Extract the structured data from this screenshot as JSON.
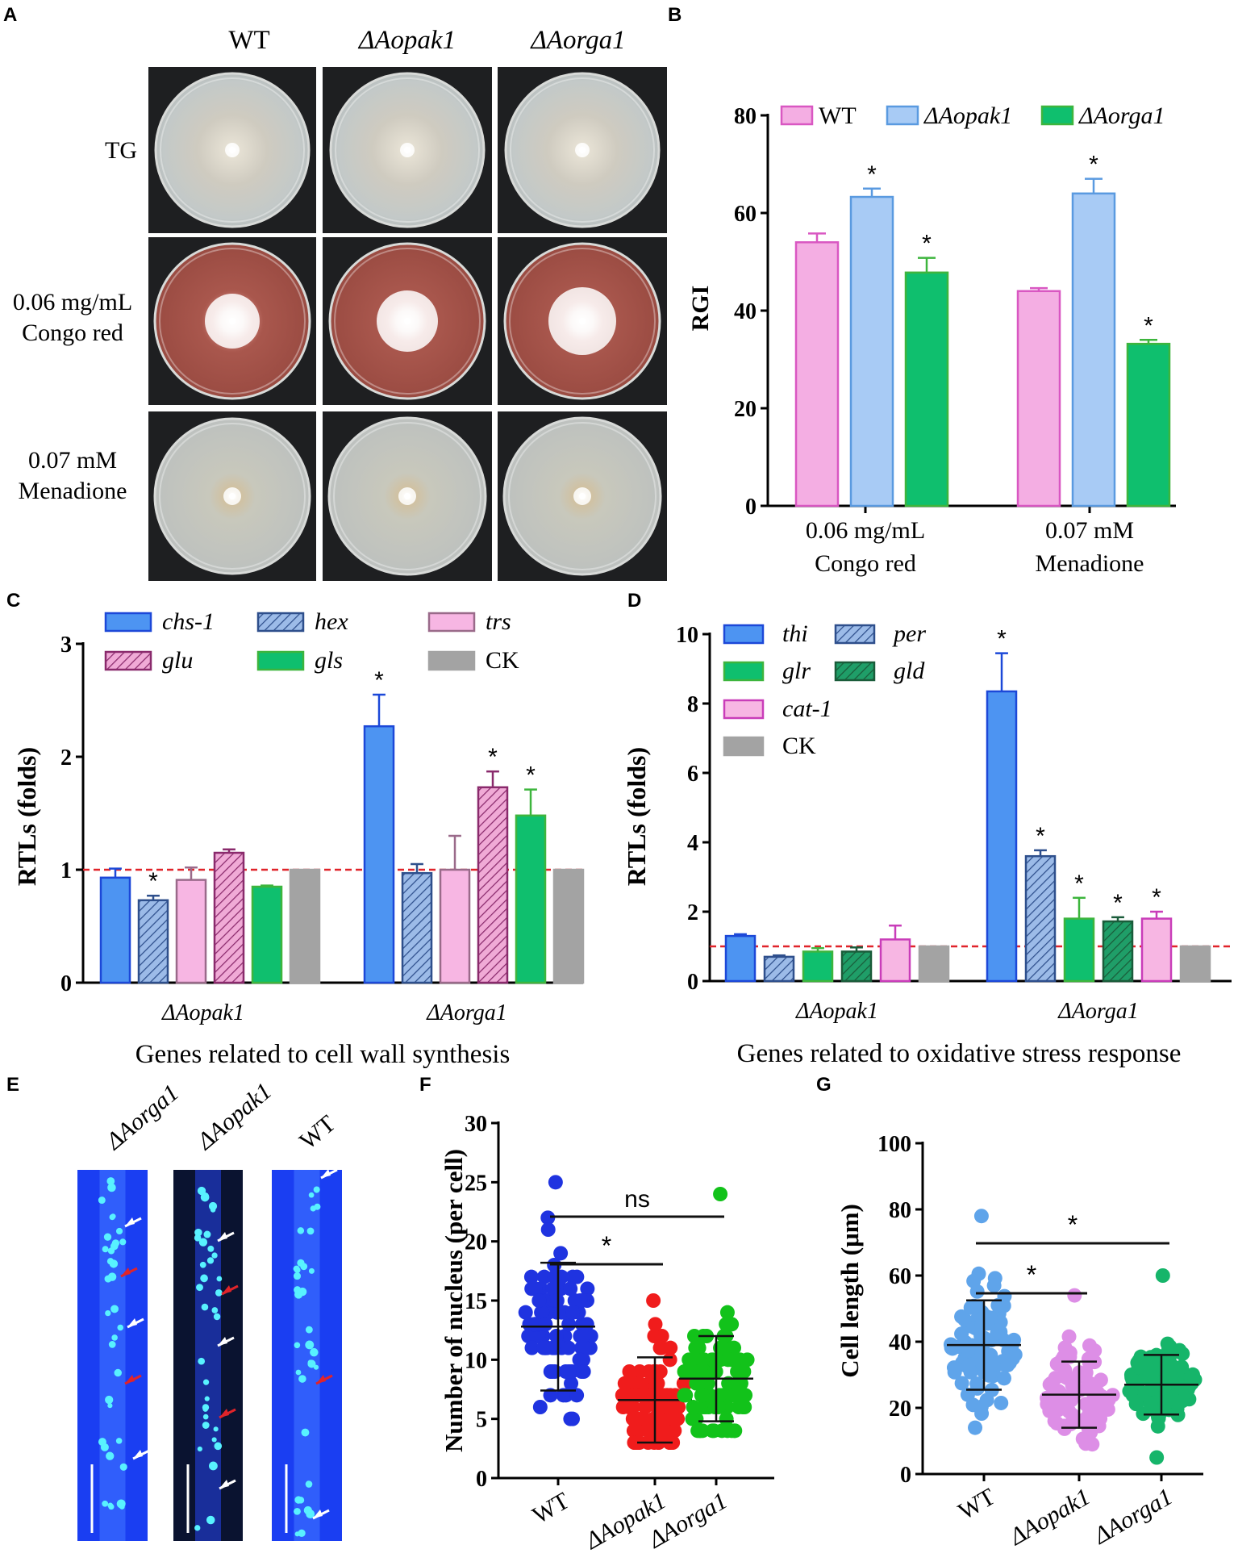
{
  "panel_letters": {
    "A": "A",
    "B": "B",
    "C": "C",
    "D": "D",
    "E": "E",
    "F": "F",
    "G": "G"
  },
  "panelA": {
    "columns": [
      "WT",
      "ΔAopak1",
      "ΔAorga1"
    ],
    "rows": [
      {
        "line1": "TG",
        "line2": ""
      },
      {
        "line1": "0.06 mg/mL",
        "line2": "Congo red"
      },
      {
        "line1": "0.07 mM",
        "line2": "Menadione"
      }
    ],
    "colors": {
      "tg_plate": "#c9ccc8",
      "congo_plate": "#b06256",
      "mena_plate": "#c3c5c1",
      "tg_colony": "#d9d3c4",
      "congo_colony": "#f2e8e4",
      "mena_colony": "#d7c8ab"
    }
  },
  "chart_data": [
    {
      "panel": "B",
      "type": "bar",
      "ylabel": "RGI",
      "ylim": [
        0,
        80
      ],
      "yticks": [
        0,
        20,
        40,
        60,
        80
      ],
      "groups": [
        {
          "line1": "0.06 mg/mL",
          "line2": "Congo red"
        },
        {
          "line1": "0.07 mM",
          "line2": "Menadione"
        }
      ],
      "series": [
        {
          "name": "WT",
          "fill": "#f4aee3",
          "stroke": "#d957c2",
          "values": [
            54,
            44
          ],
          "errors": [
            1.8,
            0.6
          ],
          "sig": [
            "",
            ""
          ]
        },
        {
          "name": "ΔAopak1",
          "fill": "#a8cbf5",
          "stroke": "#5a9ae0",
          "values": [
            63.3,
            64
          ],
          "errors": [
            1.7,
            3
          ],
          "sig": [
            "*",
            "*"
          ]
        },
        {
          "name": "ΔAorga1",
          "fill": "#0fbf6e",
          "stroke": "#3db53d",
          "values": [
            47.8,
            33.2
          ],
          "errors": [
            3,
            0.8
          ],
          "sig": [
            "*",
            "*"
          ]
        }
      ]
    },
    {
      "panel": "C",
      "type": "bar",
      "ylabel": "RTLs (folds)",
      "xlabel": "Genes related to cell wall synthesis",
      "ylim": [
        0,
        3
      ],
      "yticks": [
        0,
        1,
        2,
        3
      ],
      "reference_line": 1,
      "groups": [
        "ΔAopak1",
        "ΔAorga1"
      ],
      "series": [
        {
          "name": "chs-1",
          "italic": true,
          "fill": "#4d94f2",
          "stroke": "#1c48d8",
          "hatch": false,
          "values": [
            0.93,
            2.27
          ],
          "errors": [
            0.08,
            0.28
          ],
          "sig": [
            "",
            "*"
          ]
        },
        {
          "name": "hex",
          "italic": true,
          "fill": "#9cbbe8",
          "stroke": "#2e4f8c",
          "hatch": true,
          "values": [
            0.73,
            0.97
          ],
          "errors": [
            0.04,
            0.08
          ],
          "sig": [
            "*",
            ""
          ]
        },
        {
          "name": "trs",
          "italic": true,
          "fill": "#f7b6e3",
          "stroke": "#9a6a8a",
          "hatch": false,
          "values": [
            0.91,
            1.0
          ],
          "errors": [
            0.11,
            0.3
          ],
          "sig": [
            "",
            ""
          ]
        },
        {
          "name": "glu",
          "italic": true,
          "fill": "#f0aad6",
          "stroke": "#8a2a6c",
          "hatch": true,
          "values": [
            1.15,
            1.73
          ],
          "errors": [
            0.03,
            0.14
          ],
          "sig": [
            "",
            "*"
          ]
        },
        {
          "name": "gls",
          "italic": true,
          "fill": "#0fbf6e",
          "stroke": "#3db53d",
          "hatch": false,
          "values": [
            0.85,
            1.48
          ],
          "errors": [
            0.01,
            0.23
          ],
          "sig": [
            "",
            "*"
          ]
        },
        {
          "name": "CK",
          "italic": false,
          "fill": "#a3a3a3",
          "stroke": "#a3a3a3",
          "hatch": false,
          "values": [
            1.0,
            1.0
          ],
          "errors": [
            0,
            0
          ],
          "sig": [
            "",
            ""
          ]
        }
      ]
    },
    {
      "panel": "D",
      "type": "bar",
      "ylabel": "RTLs (folds)",
      "xlabel": "Genes related to oxidative stress response",
      "ylim": [
        0,
        10
      ],
      "yticks": [
        0,
        2,
        4,
        6,
        8,
        10
      ],
      "reference_line": 1,
      "groups": [
        "ΔAopak1",
        "ΔAorga1"
      ],
      "series": [
        {
          "name": "thi",
          "italic": true,
          "fill": "#4d94f2",
          "stroke": "#1c48d8",
          "hatch": false,
          "values": [
            1.3,
            8.35
          ],
          "errors": [
            0.05,
            1.1
          ],
          "sig": [
            "",
            "*"
          ]
        },
        {
          "name": "per",
          "italic": true,
          "fill": "#9cbbe8",
          "stroke": "#2e4f8c",
          "hatch": true,
          "values": [
            0.7,
            3.6
          ],
          "errors": [
            0.04,
            0.17
          ],
          "sig": [
            "",
            "*"
          ]
        },
        {
          "name": "glr",
          "italic": true,
          "fill": "#0fbf6e",
          "stroke": "#3db53d",
          "hatch": false,
          "values": [
            0.85,
            1.8
          ],
          "errors": [
            0.1,
            0.6
          ],
          "sig": [
            "",
            "*"
          ]
        },
        {
          "name": "gld",
          "italic": true,
          "fill": "#1f9e68",
          "stroke": "#1a5c3a",
          "hatch": true,
          "values": [
            0.85,
            1.72
          ],
          "errors": [
            0.12,
            0.12
          ],
          "sig": [
            "",
            "*"
          ]
        },
        {
          "name": "cat-1",
          "italic": true,
          "fill": "#f7b6e3",
          "stroke": "#c93db9",
          "hatch": false,
          "values": [
            1.2,
            1.8
          ],
          "errors": [
            0.4,
            0.2
          ],
          "sig": [
            "",
            "*"
          ]
        },
        {
          "name": "CK",
          "italic": false,
          "fill": "#a3a3a3",
          "stroke": "#a3a3a3",
          "hatch": false,
          "values": [
            1.0,
            1.0
          ],
          "errors": [
            0,
            0
          ],
          "sig": [
            "",
            ""
          ]
        }
      ]
    },
    {
      "panel": "F",
      "type": "scatter",
      "ylabel": "Number of nucleus (per cell)",
      "ylim": [
        0,
        30
      ],
      "yticks": [
        0,
        5,
        10,
        15,
        20,
        25,
        30
      ],
      "categories": [
        "WT",
        "ΔAopak1",
        "ΔAorga1"
      ],
      "colors": [
        "#1f33e0",
        "#f01c1c",
        "#12c21a"
      ],
      "means": [
        12.8,
        6.6,
        8.4
      ],
      "sds": [
        5.4,
        3.6,
        3.6
      ],
      "ranges": [
        [
          5,
          25
        ],
        [
          3,
          15
        ],
        [
          4,
          24
        ]
      ],
      "brackets": [
        {
          "from": 0,
          "to": 1,
          "label": "*"
        },
        {
          "from": 0,
          "to": 2,
          "label": "ns"
        }
      ]
    },
    {
      "panel": "G",
      "type": "scatter",
      "ylabel": "Cell length (μm)",
      "ylim": [
        0,
        100
      ],
      "yticks": [
        0,
        20,
        40,
        60,
        80,
        100
      ],
      "categories": [
        "WT",
        "ΔAopak1",
        "ΔAorga1"
      ],
      "colors": [
        "#5fa4ea",
        "#dd8ee6",
        "#16b56a"
      ],
      "means": [
        39,
        24,
        27
      ],
      "sds": [
        13.5,
        10,
        9
      ],
      "ranges": [
        [
          14,
          78
        ],
        [
          9,
          54
        ],
        [
          5,
          60
        ]
      ],
      "brackets": [
        {
          "from": 0,
          "to": 1,
          "label": "*"
        },
        {
          "from": 0,
          "to": 2,
          "label": "*"
        }
      ]
    }
  ],
  "panelE": {
    "labels": [
      "ΔAorga1",
      "ΔAopak1",
      "WT"
    ],
    "background": "#1a3ef2",
    "dark_background": "#0a1330",
    "nucleus_color": "#58f2ff"
  }
}
